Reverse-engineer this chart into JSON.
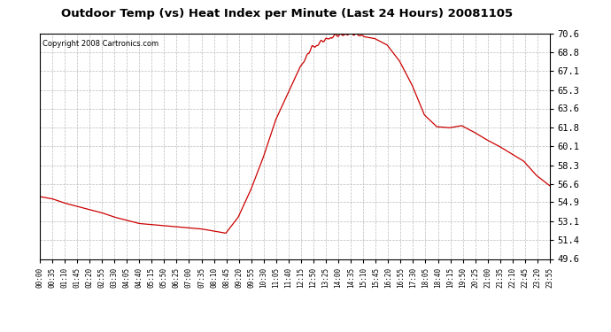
{
  "title": "Outdoor Temp (vs) Heat Index per Minute (Last 24 Hours) 20081105",
  "copyright": "Copyright 2008 Cartronics.com",
  "line_color": "#cc0000",
  "background_color": "#ffffff",
  "plot_background": "#ffffff",
  "grid_color": "#aaaaaa",
  "y_ticks": [
    49.6,
    51.4,
    53.1,
    54.9,
    56.6,
    58.3,
    60.1,
    61.8,
    63.6,
    65.3,
    67.1,
    68.8,
    70.6
  ],
  "y_min": 49.6,
  "y_max": 70.6,
  "x_labels": [
    "00:00",
    "00:35",
    "01:10",
    "01:45",
    "02:20",
    "02:55",
    "03:30",
    "04:05",
    "04:40",
    "05:15",
    "05:50",
    "06:25",
    "07:00",
    "07:35",
    "08:10",
    "08:45",
    "09:20",
    "09:55",
    "10:30",
    "11:05",
    "11:40",
    "12:15",
    "12:50",
    "13:25",
    "14:00",
    "14:35",
    "15:10",
    "15:45",
    "16:20",
    "16:55",
    "17:30",
    "18:05",
    "18:40",
    "19:15",
    "19:50",
    "20:25",
    "21:00",
    "21:35",
    "22:10",
    "22:45",
    "23:20",
    "23:55"
  ],
  "key_x": [
    0,
    35,
    70,
    105,
    140,
    175,
    210,
    245,
    280,
    315,
    350,
    385,
    420,
    455,
    490,
    525,
    560,
    595,
    630,
    665,
    700,
    735,
    770,
    805,
    840,
    875,
    910,
    945,
    980,
    1015,
    1050,
    1085,
    1120,
    1155,
    1190,
    1225,
    1260,
    1295,
    1330,
    1365,
    1400,
    1439
  ],
  "key_y": [
    55.4,
    55.2,
    54.8,
    54.5,
    54.2,
    53.9,
    53.5,
    53.2,
    52.9,
    52.8,
    52.7,
    52.6,
    52.5,
    52.4,
    52.2,
    52.0,
    53.5,
    56.0,
    59.0,
    62.5,
    65.0,
    67.5,
    69.0,
    69.8,
    70.2,
    70.4,
    70.3,
    70.1,
    69.5,
    68.0,
    65.8,
    63.0,
    61.9,
    61.8,
    62.0,
    61.4,
    60.7,
    60.1,
    59.4,
    58.7,
    57.4,
    56.4
  ]
}
